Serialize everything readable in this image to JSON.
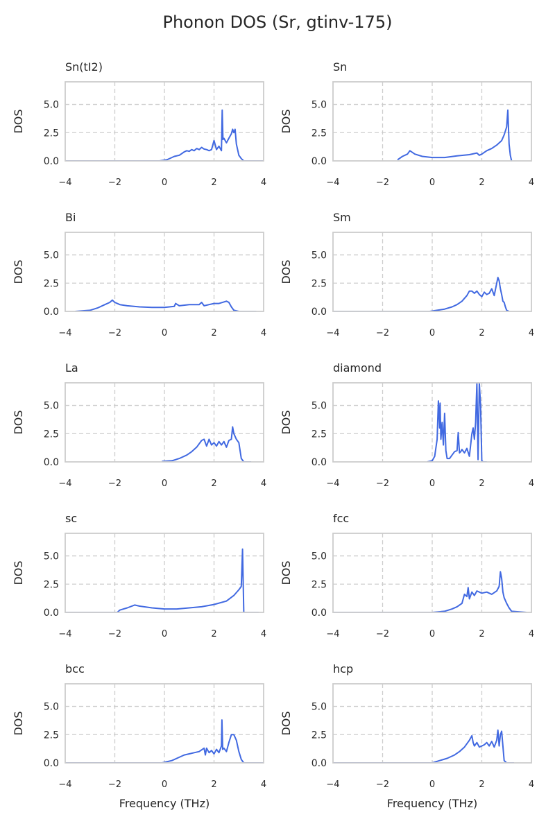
{
  "title": "Phonon DOS (Sr, gtinv-175)",
  "chart_data": [
    {
      "type": "line",
      "title": "Sn(tI2)",
      "xlabel": "",
      "ylabel": "DOS",
      "xlim": [
        -4,
        4
      ],
      "ylim": [
        0,
        7
      ],
      "xticks": [
        "−4",
        "−2",
        "0",
        "2",
        "4"
      ],
      "yticks": [
        "0.0",
        "2.5",
        "5.0"
      ],
      "grid": true,
      "color": "#4169E1",
      "x": [
        -4,
        -0.2,
        0.1,
        0.4,
        0.6,
        0.8,
        0.9,
        1.0,
        1.1,
        1.2,
        1.3,
        1.4,
        1.5,
        1.6,
        1.7,
        1.8,
        1.9,
        2.0,
        2.05,
        2.1,
        2.2,
        2.3,
        2.33,
        2.36,
        2.4,
        2.5,
        2.6,
        2.7,
        2.75,
        2.8,
        2.85,
        2.9,
        2.95,
        3.0,
        3.1,
        3.2,
        4
      ],
      "y": [
        0,
        0,
        0.1,
        0.4,
        0.5,
        0.8,
        0.9,
        0.85,
        1.0,
        0.9,
        1.1,
        1.0,
        1.2,
        1.05,
        1.0,
        0.9,
        1.0,
        1.8,
        1.4,
        1.0,
        1.3,
        0.9,
        4.5,
        1.9,
        2.0,
        1.6,
        2.0,
        2.4,
        2.8,
        2.5,
        2.8,
        1.5,
        1.0,
        0.5,
        0.2,
        0,
        0
      ]
    },
    {
      "type": "line",
      "title": "Sn",
      "xlabel": "",
      "ylabel": "DOS",
      "xlim": [
        -4,
        4
      ],
      "ylim": [
        0,
        7
      ],
      "xticks": [
        "−4",
        "−2",
        "0",
        "2",
        "4"
      ],
      "yticks": [
        "0.0",
        "2.5",
        "5.0"
      ],
      "grid": true,
      "color": "#4169E1",
      "x": [
        -1.4,
        -1.2,
        -1.0,
        -0.9,
        -0.7,
        -0.4,
        0,
        0.5,
        1.0,
        1.5,
        1.8,
        1.9,
        2.0,
        2.2,
        2.4,
        2.6,
        2.8,
        2.9,
        3.0,
        3.05,
        3.1,
        3.15,
        3.2
      ],
      "y": [
        0.1,
        0.4,
        0.6,
        0.9,
        0.6,
        0.4,
        0.3,
        0.3,
        0.45,
        0.55,
        0.7,
        0.5,
        0.6,
        0.9,
        1.1,
        1.4,
        1.8,
        2.3,
        3.0,
        4.5,
        1.5,
        0.5,
        0
      ]
    },
    {
      "type": "line",
      "title": "Bi",
      "xlabel": "",
      "ylabel": "DOS",
      "xlim": [
        -4,
        4
      ],
      "ylim": [
        0,
        7
      ],
      "xticks": [
        "−4",
        "−2",
        "0",
        "2",
        "4"
      ],
      "yticks": [
        "0.0",
        "2.5",
        "5.0"
      ],
      "grid": true,
      "color": "#4169E1",
      "x": [
        -3.6,
        -3.0,
        -2.7,
        -2.4,
        -2.2,
        -2.1,
        -2.0,
        -1.8,
        -1.5,
        -1.0,
        -0.5,
        0,
        0.4,
        0.45,
        0.6,
        1.0,
        1.4,
        1.5,
        1.6,
        1.8,
        2.0,
        2.2,
        2.5,
        2.6,
        2.7,
        2.8,
        3.0,
        3.7
      ],
      "y": [
        0,
        0.1,
        0.3,
        0.6,
        0.8,
        1.0,
        0.8,
        0.6,
        0.5,
        0.4,
        0.35,
        0.35,
        0.45,
        0.7,
        0.5,
        0.6,
        0.6,
        0.8,
        0.5,
        0.6,
        0.7,
        0.7,
        0.9,
        0.8,
        0.4,
        0.1,
        0,
        0
      ]
    },
    {
      "type": "line",
      "title": "Sm",
      "xlabel": "",
      "ylabel": "DOS",
      "xlim": [
        -4,
        4
      ],
      "ylim": [
        0,
        7
      ],
      "xticks": [
        "−4",
        "−2",
        "0",
        "2",
        "4"
      ],
      "yticks": [
        "0.0",
        "2.5",
        "5.0"
      ],
      "grid": true,
      "color": "#4169E1",
      "x": [
        -4,
        -0.1,
        0.2,
        0.5,
        0.8,
        1.0,
        1.2,
        1.4,
        1.5,
        1.6,
        1.7,
        1.8,
        1.9,
        2.0,
        2.1,
        2.2,
        2.3,
        2.4,
        2.5,
        2.6,
        2.65,
        2.7,
        2.75,
        2.8,
        2.85,
        2.9,
        2.95,
        3.0,
        3.1
      ],
      "y": [
        0,
        0,
        0.1,
        0.2,
        0.4,
        0.6,
        0.9,
        1.4,
        1.8,
        1.8,
        1.6,
        1.8,
        1.5,
        1.3,
        1.7,
        1.5,
        1.6,
        2.0,
        1.4,
        2.5,
        3.0,
        2.7,
        2.0,
        1.5,
        0.9,
        0.8,
        0.4,
        0.1,
        0
      ]
    },
    {
      "type": "line",
      "title": "La",
      "xlabel": "",
      "ylabel": "DOS",
      "xlim": [
        -4,
        4
      ],
      "ylim": [
        0,
        7
      ],
      "xticks": [
        "−4",
        "−2",
        "0",
        "2",
        "4"
      ],
      "yticks": [
        "0.0",
        "2.5",
        "5.0"
      ],
      "grid": true,
      "color": "#4169E1",
      "x": [
        -0.1,
        0.3,
        0.6,
        0.9,
        1.1,
        1.3,
        1.5,
        1.6,
        1.7,
        1.8,
        1.9,
        2.0,
        2.1,
        2.2,
        2.3,
        2.4,
        2.5,
        2.6,
        2.7,
        2.75,
        2.8,
        2.9,
        3.0,
        3.1,
        3.2,
        3.5
      ],
      "y": [
        0.05,
        0.1,
        0.3,
        0.6,
        0.9,
        1.3,
        1.9,
        2.0,
        1.4,
        2.0,
        1.5,
        1.7,
        1.4,
        1.8,
        1.5,
        1.8,
        1.3,
        1.9,
        2.0,
        3.1,
        2.5,
        2.0,
        1.7,
        0.3,
        0,
        0
      ]
    },
    {
      "type": "line",
      "title": "diamond",
      "xlabel": "",
      "ylabel": "DOS",
      "xlim": [
        -4,
        4
      ],
      "ylim": [
        0,
        7
      ],
      "xticks": [
        "−4",
        "−2",
        "0",
        "2",
        "4"
      ],
      "yticks": [
        "0.0",
        "2.5",
        "5.0"
      ],
      "grid": true,
      "color": "#4169E1",
      "x": [
        -0.2,
        0.0,
        0.1,
        0.2,
        0.25,
        0.3,
        0.32,
        0.35,
        0.4,
        0.45,
        0.5,
        0.55,
        0.6,
        0.7,
        0.8,
        0.9,
        1.0,
        1.05,
        1.1,
        1.15,
        1.2,
        1.3,
        1.4,
        1.5,
        1.6,
        1.65,
        1.7,
        1.75,
        1.8,
        1.85,
        1.9,
        1.95,
        2.0,
        2.05,
        2.2
      ],
      "y": [
        0,
        0.1,
        0.5,
        2.0,
        5.4,
        3.0,
        5.2,
        2.0,
        3.5,
        1.5,
        4.3,
        1.0,
        0.3,
        0.3,
        0.6,
        0.9,
        1.0,
        2.6,
        0.8,
        0.9,
        1.1,
        0.8,
        1.2,
        0.5,
        2.5,
        3.0,
        2.0,
        3.5,
        7.0,
        0.2,
        7.0,
        5.0,
        0.1,
        0,
        0
      ]
    },
    {
      "type": "line",
      "title": "sc",
      "xlabel": "",
      "ylabel": "DOS",
      "xlim": [
        -4,
        4
      ],
      "ylim": [
        0,
        7
      ],
      "xticks": [
        "−4",
        "−2",
        "0",
        "2",
        "4"
      ],
      "yticks": [
        "0.0",
        "2.5",
        "5.0"
      ],
      "grid": true,
      "color": "#4169E1",
      "x": [
        -4,
        -1.9,
        -1.8,
        -1.5,
        -1.2,
        -1.0,
        -0.5,
        0,
        0.5,
        1.0,
        1.5,
        2.0,
        2.5,
        2.8,
        3.0,
        3.1,
        3.15,
        3.2,
        3.8
      ],
      "y": [
        0,
        0,
        0.2,
        0.4,
        0.65,
        0.55,
        0.4,
        0.3,
        0.3,
        0.4,
        0.5,
        0.7,
        1.0,
        1.5,
        2.0,
        2.3,
        5.6,
        0,
        0
      ]
    },
    {
      "type": "line",
      "title": "fcc",
      "xlabel": "",
      "ylabel": "DOS",
      "xlim": [
        -4,
        4
      ],
      "ylim": [
        0,
        7
      ],
      "xticks": [
        "−4",
        "−2",
        "0",
        "2",
        "4"
      ],
      "yticks": [
        "0.0",
        "2.5",
        "5.0"
      ],
      "grid": true,
      "color": "#4169E1",
      "x": [
        -4,
        0,
        0.5,
        0.8,
        1.0,
        1.2,
        1.3,
        1.4,
        1.45,
        1.5,
        1.6,
        1.7,
        1.8,
        2.0,
        2.2,
        2.4,
        2.6,
        2.7,
        2.75,
        2.8,
        2.85,
        2.9,
        3.0,
        3.1,
        3.2,
        3.8
      ],
      "y": [
        0,
        0,
        0.1,
        0.3,
        0.5,
        0.8,
        1.6,
        1.4,
        2.2,
        1.2,
        1.8,
        1.5,
        1.9,
        1.7,
        1.8,
        1.6,
        1.9,
        2.3,
        3.6,
        3.0,
        1.8,
        1.3,
        0.8,
        0.4,
        0.1,
        0
      ]
    },
    {
      "type": "line",
      "title": "bcc",
      "xlabel": "Frequency (THz)",
      "ylabel": "DOS",
      "xlim": [
        -4,
        4
      ],
      "ylim": [
        0,
        7
      ],
      "xticks": [
        "−4",
        "−2",
        "0",
        "2",
        "4"
      ],
      "yticks": [
        "0.0",
        "2.5",
        "5.0"
      ],
      "grid": true,
      "color": "#4169E1",
      "x": [
        -4,
        -0.1,
        0.3,
        0.6,
        0.8,
        1.0,
        1.2,
        1.4,
        1.6,
        1.65,
        1.7,
        1.8,
        1.9,
        2.0,
        2.1,
        2.2,
        2.3,
        2.32,
        2.35,
        2.4,
        2.5,
        2.6,
        2.7,
        2.8,
        2.9,
        3.0,
        3.1,
        3.2,
        4
      ],
      "y": [
        0,
        0,
        0.2,
        0.5,
        0.7,
        0.8,
        0.9,
        1.0,
        1.3,
        0.7,
        1.3,
        0.9,
        1.1,
        0.8,
        1.2,
        0.9,
        1.5,
        3.8,
        1.2,
        1.3,
        1.0,
        1.8,
        2.5,
        2.5,
        2.0,
        1.0,
        0.3,
        0,
        0
      ]
    },
    {
      "type": "line",
      "title": "hcp",
      "xlabel": "Frequency (THz)",
      "ylabel": "DOS",
      "xlim": [
        -4,
        4
      ],
      "ylim": [
        0,
        7
      ],
      "xticks": [
        "−4",
        "−2",
        "0",
        "2",
        "4"
      ],
      "yticks": [
        "0.0",
        "2.5",
        "5.0"
      ],
      "grid": true,
      "color": "#4169E1",
      "x": [
        -4,
        0,
        0.3,
        0.6,
        0.9,
        1.1,
        1.3,
        1.5,
        1.6,
        1.65,
        1.7,
        1.8,
        1.9,
        2.0,
        2.1,
        2.2,
        2.3,
        2.4,
        2.5,
        2.6,
        2.65,
        2.7,
        2.75,
        2.8,
        2.85,
        2.9,
        3.0,
        3.3
      ],
      "y": [
        0,
        0,
        0.2,
        0.4,
        0.7,
        1.0,
        1.4,
        2.0,
        2.4,
        1.8,
        1.5,
        1.8,
        1.4,
        1.5,
        1.6,
        1.8,
        1.5,
        1.9,
        1.4,
        2.0,
        2.9,
        1.5,
        2.5,
        2.8,
        1.5,
        0.2,
        0,
        0
      ]
    }
  ]
}
